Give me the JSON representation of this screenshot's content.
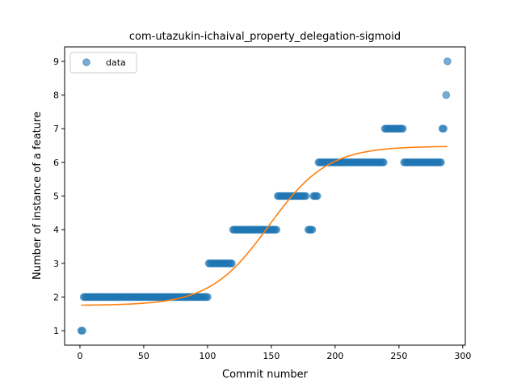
{
  "chart_data": {
    "type": "scatter",
    "title": "com-utazukin-ichaival_property_delegation-sigmoid",
    "xlabel": "Commit number",
    "ylabel": "Number of instance of a feature",
    "xlim": [
      -12,
      302
    ],
    "ylim": [
      0.57,
      9.43
    ],
    "xticks": [
      0,
      50,
      100,
      150,
      200,
      250,
      300
    ],
    "yticks": [
      1,
      2,
      3,
      4,
      5,
      6,
      7,
      8,
      9
    ],
    "legend": {
      "position": "top-left",
      "entries": [
        "data"
      ]
    },
    "grid": false,
    "colors": {
      "data": "#1f77b4",
      "fit": "#ff7f0e"
    },
    "series": [
      {
        "name": "data",
        "kind": "scatter",
        "segments": [
          {
            "x_start": 1,
            "x_end": 2,
            "y": 1
          },
          {
            "x_start": 3,
            "x_end": 100,
            "y": 2
          },
          {
            "x_start": 101,
            "x_end": 119,
            "y": 3
          },
          {
            "x_start": 120,
            "x_end": 154,
            "y": 4
          },
          {
            "x_start": 155,
            "x_end": 177,
            "y": 5
          },
          {
            "x_start": 179,
            "x_end": 182,
            "y": 4
          },
          {
            "x_start": 183,
            "x_end": 186,
            "y": 5
          },
          {
            "x_start": 187,
            "x_end": 238,
            "y": 6
          },
          {
            "x_start": 239,
            "x_end": 253,
            "y": 7
          },
          {
            "x_start": 254,
            "x_end": 283,
            "y": 6
          },
          {
            "x_start": 284,
            "x_end": 285,
            "y": 7
          }
        ],
        "points": [
          {
            "x": 287,
            "y": 8
          },
          {
            "x": 288,
            "y": 9
          }
        ]
      },
      {
        "kind": "line",
        "description_of_curve": "sigmoid fit",
        "sigmoid": {
          "lower": 1.75,
          "upper": 6.48,
          "midpoint": 148,
          "scale": 23
        },
        "x_range": [
          1,
          288
        ]
      }
    ]
  }
}
